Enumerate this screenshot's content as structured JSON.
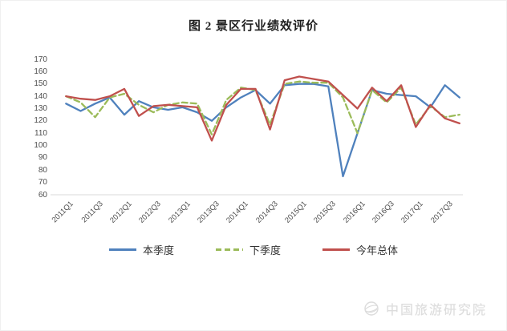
{
  "title": "图 2 景区行业绩效评价",
  "watermark": {
    "label": "中国旅游研究院"
  },
  "chart_data": {
    "type": "line",
    "categories": [
      "2011Q1",
      "2011Q2",
      "2011Q3",
      "2011Q4",
      "2012Q1",
      "2012Q2",
      "2012Q3",
      "2012Q4",
      "2013Q1",
      "2013Q2",
      "2013Q3",
      "2013Q4",
      "2014Q1",
      "2014Q2",
      "2014Q3",
      "2014Q4",
      "2015Q1",
      "2015Q2",
      "2015Q3",
      "2015Q4",
      "2016Q1",
      "2016Q2",
      "2016Q3",
      "2016Q4",
      "2017Q1",
      "2017Q2",
      "2017Q3",
      "2017Q4"
    ],
    "x_tick_labels": [
      "2011Q1",
      "2011Q3",
      "2012Q1",
      "2012Q3",
      "2013Q1",
      "2013Q3",
      "2014Q1",
      "2014Q3",
      "2015Q1",
      "2015Q3",
      "2016Q1",
      "2016Q3",
      "2017Q1",
      "2017Q3"
    ],
    "ylim": [
      60,
      170
    ],
    "ytick_step": 10,
    "grid": false,
    "legend_position": "bottom",
    "axis_color": "#d9d9d9",
    "tick_label_color": "#4d4d4d",
    "series": [
      {
        "name": "本季度",
        "color": "#4F81BD",
        "style": "solid",
        "values": [
          134,
          128,
          134,
          139,
          125,
          136,
          131,
          129,
          131,
          127,
          120,
          131,
          139,
          145,
          134,
          149,
          150,
          150,
          148,
          75,
          110,
          145,
          142,
          141,
          140,
          131,
          149,
          139
        ]
      },
      {
        "name": "下季度",
        "color": "#9BBB59",
        "style": "dashed",
        "values": [
          140,
          135,
          123,
          139,
          142,
          133,
          127,
          133,
          135,
          134,
          109,
          137,
          147,
          145,
          117,
          150,
          152,
          151,
          151,
          139,
          110,
          145,
          135,
          147,
          117,
          132,
          123,
          125
        ]
      },
      {
        "name": "今年总体",
        "color": "#C0504D",
        "style": "solid",
        "values": [
          140,
          138,
          137,
          140,
          146,
          124,
          132,
          133,
          132,
          131,
          104,
          133,
          146,
          146,
          113,
          153,
          156,
          154,
          152,
          141,
          130,
          147,
          136,
          149,
          115,
          133,
          122,
          118
        ]
      }
    ]
  }
}
